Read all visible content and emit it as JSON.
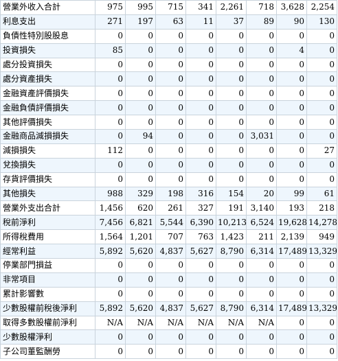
{
  "rows": [
    {
      "label": "營業外收入合計",
      "values": [
        "975",
        "995",
        "715",
        "341",
        "2,261",
        "718",
        "3,628",
        "2,254"
      ]
    },
    {
      "label": "利息支出",
      "values": [
        "271",
        "197",
        "63",
        "11",
        "37",
        "89",
        "90",
        "130"
      ]
    },
    {
      "label": "負債性特別股股息",
      "values": [
        "0",
        "0",
        "0",
        "0",
        "0",
        "0",
        "0",
        "0"
      ]
    },
    {
      "label": "投資損失",
      "values": [
        "85",
        "0",
        "0",
        "0",
        "0",
        "0",
        "4",
        "0"
      ]
    },
    {
      "label": "處分投資損失",
      "values": [
        "0",
        "0",
        "0",
        "0",
        "0",
        "0",
        "0",
        "0"
      ]
    },
    {
      "label": "處分資產損失",
      "values": [
        "0",
        "0",
        "0",
        "0",
        "0",
        "0",
        "0",
        "0"
      ]
    },
    {
      "label": "金融資產評價損失",
      "values": [
        "0",
        "0",
        "0",
        "0",
        "0",
        "0",
        "0",
        "0"
      ]
    },
    {
      "label": "金融負債評價損失",
      "values": [
        "0",
        "0",
        "0",
        "0",
        "0",
        "0",
        "0",
        "0"
      ]
    },
    {
      "label": "其他評價損失",
      "values": [
        "0",
        "0",
        "0",
        "0",
        "0",
        "0",
        "0",
        "0"
      ]
    },
    {
      "label": "金融商品減損損失",
      "values": [
        "0",
        "94",
        "0",
        "0",
        "0",
        "3,031",
        "0",
        "0"
      ]
    },
    {
      "label": "減損損失",
      "values": [
        "112",
        "0",
        "0",
        "0",
        "0",
        "0",
        "0",
        "27"
      ]
    },
    {
      "label": "兌換損失",
      "values": [
        "0",
        "0",
        "0",
        "0",
        "0",
        "0",
        "0",
        "0"
      ]
    },
    {
      "label": "存貨評價損失",
      "values": [
        "0",
        "0",
        "0",
        "0",
        "0",
        "0",
        "0",
        "0"
      ]
    },
    {
      "label": "其他損失",
      "values": [
        "988",
        "329",
        "198",
        "316",
        "154",
        "20",
        "99",
        "61"
      ]
    },
    {
      "label": "營業外支出合計",
      "values": [
        "1,456",
        "620",
        "261",
        "327",
        "191",
        "3,140",
        "193",
        "218"
      ]
    },
    {
      "label": "稅前淨利",
      "values": [
        "7,456",
        "6,821",
        "5,544",
        "6,390",
        "10,213",
        "6,524",
        "19,628",
        "14,278"
      ]
    },
    {
      "label": "所得稅費用",
      "values": [
        "1,564",
        "1,201",
        "707",
        "763",
        "1,423",
        "211",
        "2,139",
        "949"
      ]
    },
    {
      "label": "經常利益",
      "values": [
        "5,892",
        "5,620",
        "4,837",
        "5,627",
        "8,790",
        "6,314",
        "17,489",
        "13,329"
      ]
    },
    {
      "label": "停業部門損益",
      "values": [
        "0",
        "0",
        "0",
        "0",
        "0",
        "0",
        "0",
        "0"
      ]
    },
    {
      "label": "非常項目",
      "values": [
        "0",
        "0",
        "0",
        "0",
        "0",
        "0",
        "0",
        "0"
      ]
    },
    {
      "label": "累計影響數",
      "values": [
        "0",
        "0",
        "0",
        "0",
        "0",
        "0",
        "0",
        "0"
      ]
    },
    {
      "label": "少數股權前稅後淨利",
      "values": [
        "5,892",
        "5,620",
        "4,837",
        "5,627",
        "8,790",
        "6,314",
        "17,489",
        "13,329"
      ]
    },
    {
      "label": "取得多數股權前淨利",
      "values": [
        "N/A",
        "N/A",
        "N/A",
        "N/A",
        "N/A",
        "N/A",
        "0",
        "0"
      ]
    },
    {
      "label": "少數股權淨利",
      "values": [
        "0",
        "0",
        "0",
        "0",
        "0",
        "0",
        "0",
        "0"
      ]
    },
    {
      "label": "子公司董監酬勞",
      "values": [
        "0",
        "0",
        "0",
        "0",
        "0",
        "0",
        "0",
        "0"
      ]
    }
  ]
}
